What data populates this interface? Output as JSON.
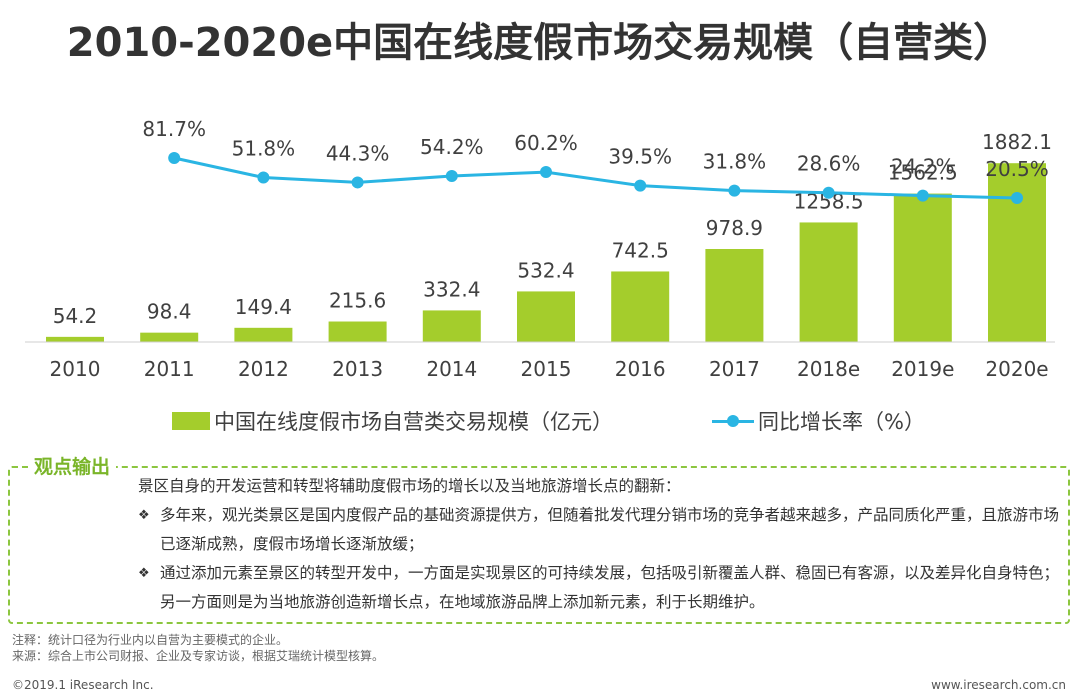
{
  "title": "2010-2020e中国在线度假市场交易规模（自营类）",
  "colors": {
    "bar": "#a4cd2c",
    "line": "#2ab5e3",
    "accent": "#7ab529",
    "border": "#8cc63f"
  },
  "chart_data": {
    "type": "bar+line",
    "categories": [
      "2010",
      "2011",
      "2012",
      "2013",
      "2014",
      "2015",
      "2016",
      "2017",
      "2018e",
      "2019e",
      "2020e"
    ],
    "series": [
      {
        "name": "中国在线度假市场自营类交易规模（亿元）",
        "type": "bar",
        "values": [
          54.2,
          98.4,
          149.4,
          215.6,
          332.4,
          532.4,
          742.5,
          978.9,
          1258.5,
          1562.5,
          1882.1
        ],
        "labels": [
          "54.2",
          "98.4",
          "149.4",
          "215.6",
          "332.4",
          "532.4",
          "742.5",
          "978.9",
          "1258.5",
          "1562.5",
          "1882.1"
        ]
      },
      {
        "name": "同比增长率（%）",
        "type": "line",
        "values": [
          null,
          81.7,
          51.8,
          44.3,
          54.2,
          60.2,
          39.5,
          31.8,
          28.6,
          24.2,
          20.5
        ],
        "labels": [
          "",
          "81.7%",
          "51.8%",
          "44.3%",
          "54.2%",
          "60.2%",
          "39.5%",
          "31.8%",
          "28.6%",
          "24.2%",
          "20.5%"
        ]
      }
    ]
  },
  "legend": {
    "bar_label": "中国在线度假市场自营类交易规模（亿元）",
    "line_label": "同比增长率（%）"
  },
  "panel": {
    "tag": "观点输出",
    "intro": "景区自身的开发运营和转型将辅助度假市场的增长以及当地旅游增长点的翻新：",
    "bullet_mark": "❖",
    "bullets": [
      "多年来，观光类景区是国内度假产品的基础资源提供方，但随着批发代理分销市场的竞争者越来越多，产品同质化严重，且旅游市场已逐渐成熟，度假市场增长逐渐放缓；",
      "通过添加元素至景区的转型开发中，一方面是实现景区的可持续发展，包括吸引新覆盖人群、稳固已有客源，以及差异化自身特色；另一方面则是为当地旅游创造新增长点，在地域旅游品牌上添加新元素，利于长期维护。"
    ]
  },
  "notes": {
    "note": "注释：统计口径为行业内以自营为主要模式的企业。",
    "source": "来源：综合上市公司财报、企业及专家访谈，根据艾瑞统计模型核算。"
  },
  "footer": {
    "copyright": "©2019.1 iResearch Inc.",
    "website": "www.iresearch.com.cn"
  }
}
